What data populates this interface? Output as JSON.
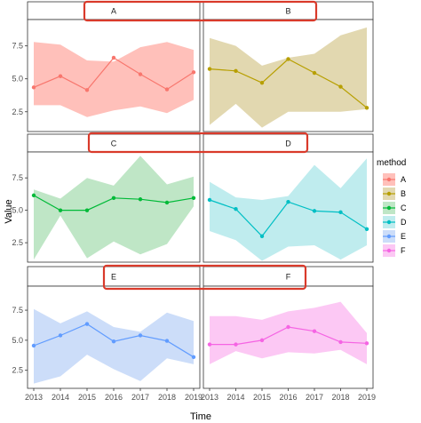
{
  "chart_data": {
    "type": "line",
    "facet_layout": "3x2",
    "xlabel": "Time",
    "ylabel": "Value",
    "x": [
      2013,
      2014,
      2015,
      2016,
      2017,
      2018,
      2019
    ],
    "x_ticks": [
      "2013",
      "2014",
      "2015",
      "2016",
      "2017",
      "2018",
      "2019"
    ],
    "ylim": [
      1.0,
      9.5
    ],
    "y_ticks": [
      "2.5",
      "5.0",
      "7.5"
    ],
    "legend_title": "method",
    "legend_position": "right",
    "series": [
      {
        "name": "A",
        "color": "#F8766D",
        "ribbon_color": "#FFC0BA",
        "values": [
          4.35,
          5.2,
          4.15,
          6.6,
          5.35,
          4.2,
          5.5
        ],
        "upper": [
          7.8,
          7.6,
          6.4,
          6.3,
          7.4,
          7.8,
          7.2
        ],
        "lower": [
          3.0,
          3.0,
          2.1,
          2.6,
          2.9,
          2.4,
          3.4
        ]
      },
      {
        "name": "B",
        "color": "#B79F00",
        "ribbon_color": "#E2D8B0",
        "values": [
          5.75,
          5.6,
          4.7,
          6.5,
          5.45,
          4.4,
          2.8
        ],
        "upper": [
          8.1,
          7.5,
          6.0,
          6.6,
          6.9,
          8.3,
          8.9
        ],
        "lower": [
          1.5,
          3.1,
          1.3,
          2.5,
          2.5,
          2.5,
          2.7
        ]
      },
      {
        "name": "C",
        "color": "#00BA38",
        "ribbon_color": "#BFE6C6",
        "values": [
          6.15,
          5.0,
          5.0,
          5.95,
          5.85,
          5.6,
          5.95
        ],
        "upper": [
          6.6,
          5.9,
          7.5,
          6.9,
          9.2,
          7.0,
          7.6
        ],
        "lower": [
          1.2,
          4.6,
          1.3,
          2.6,
          1.6,
          2.4,
          5.3
        ]
      },
      {
        "name": "D",
        "color": "#00BFC4",
        "ribbon_color": "#BFECEE",
        "values": [
          5.8,
          5.1,
          3.0,
          5.65,
          4.95,
          4.85,
          3.55
        ],
        "upper": [
          7.2,
          6.0,
          5.8,
          6.1,
          8.5,
          6.7,
          9.0
        ],
        "lower": [
          3.4,
          2.7,
          1.1,
          2.2,
          2.3,
          1.2,
          2.3
        ]
      },
      {
        "name": "E",
        "color": "#619CFF",
        "ribbon_color": "#CCDDF9",
        "values": [
          4.55,
          5.4,
          6.35,
          4.9,
          5.4,
          4.95,
          3.6
        ],
        "upper": [
          7.6,
          6.4,
          7.4,
          6.1,
          5.7,
          7.3,
          6.6
        ],
        "lower": [
          1.4,
          2.0,
          3.8,
          2.6,
          1.6,
          3.5,
          3.0
        ]
      },
      {
        "name": "F",
        "color": "#F564E3",
        "ribbon_color": "#FCC8F4",
        "values": [
          4.65,
          4.65,
          5.0,
          6.1,
          5.75,
          4.85,
          4.75
        ],
        "upper": [
          7.0,
          7.0,
          6.7,
          7.4,
          7.7,
          8.2,
          5.6
        ],
        "lower": [
          3.0,
          4.1,
          3.5,
          4.0,
          3.9,
          4.2,
          3.0
        ]
      }
    ]
  }
}
